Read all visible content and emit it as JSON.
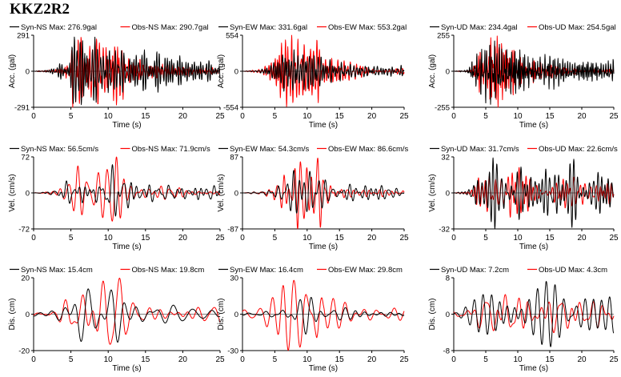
{
  "page": {
    "title": "KKZ2R2"
  },
  "colors": {
    "syn": "#000000",
    "obs": "#ff0000"
  },
  "chart_data": [
    {
      "type": "line",
      "id": "acc-ns",
      "xlabel": "Time (s)",
      "ylabel": "Acc. (gal)",
      "xlim": [
        0,
        25
      ],
      "ylim": [
        -291,
        291
      ],
      "xticks": [
        0,
        5,
        10,
        15,
        20,
        25
      ],
      "yticks": [
        -291,
        0,
        291
      ],
      "seed": 11,
      "series": [
        {
          "name": "Syn-NS  Max: 276.9gal",
          "peak": 276.9,
          "env": [
            [
              0,
              0
            ],
            [
              2,
              0.03
            ],
            [
              4.5,
              0.2
            ],
            [
              5,
              0.5
            ],
            [
              6,
              0.85
            ],
            [
              7.5,
              0.8
            ],
            [
              9,
              0.85
            ],
            [
              10.5,
              1.0
            ],
            [
              12,
              0.55
            ],
            [
              14,
              0.4
            ],
            [
              16,
              0.35
            ],
            [
              19,
              0.3
            ],
            [
              21,
              0.25
            ],
            [
              25,
              0.2
            ]
          ],
          "period": 0.45
        },
        {
          "name": "Obs-NS  Max: 290.7gal",
          "peak": 290.7,
          "env": [
            [
              0,
              0
            ],
            [
              3,
              0.03
            ],
            [
              4.8,
              0.2
            ],
            [
              5.3,
              0.75
            ],
            [
              6.2,
              1.0
            ],
            [
              8,
              0.8
            ],
            [
              10,
              0.75
            ],
            [
              11,
              0.85
            ],
            [
              12.5,
              0.3
            ],
            [
              15,
              0.15
            ],
            [
              20,
              0.08
            ],
            [
              25,
              0.05
            ]
          ],
          "period": 0.38
        }
      ]
    },
    {
      "type": "line",
      "id": "acc-ew",
      "xlabel": "Time (s)",
      "ylabel": "Acc. (gal)",
      "xlim": [
        0,
        25
      ],
      "ylim": [
        -554,
        554
      ],
      "xticks": [
        0,
        5,
        10,
        15,
        20,
        25
      ],
      "yticks": [
        -554,
        0,
        554
      ],
      "seed": 23,
      "series": [
        {
          "name": "Syn-EW  Max: 331.6gal",
          "peak": 331.6,
          "env": [
            [
              0,
              0
            ],
            [
              2.5,
              0.03
            ],
            [
              4.5,
              0.2
            ],
            [
              5.5,
              0.45
            ],
            [
              7,
              0.6
            ],
            [
              9,
              0.5
            ],
            [
              11,
              0.6
            ],
            [
              13,
              0.35
            ],
            [
              16,
              0.25
            ],
            [
              20,
              0.2
            ],
            [
              25,
              0.15
            ]
          ],
          "period": 0.45
        },
        {
          "name": "Obs-EW  Max: 553.2gal",
          "peak": 553.2,
          "env": [
            [
              0,
              0
            ],
            [
              3,
              0.03
            ],
            [
              5,
              0.2
            ],
            [
              6,
              0.5
            ],
            [
              7,
              0.55
            ],
            [
              9,
              0.45
            ],
            [
              10.5,
              0.5
            ],
            [
              11.5,
              1.0
            ],
            [
              12.5,
              0.3
            ],
            [
              15,
              0.12
            ],
            [
              20,
              0.06
            ],
            [
              25,
              0.04
            ]
          ],
          "period": 0.4
        }
      ]
    },
    {
      "type": "line",
      "id": "acc-ud",
      "xlabel": "Time (s)",
      "ylabel": "Acc. (gal)",
      "xlim": [
        0,
        25
      ],
      "ylim": [
        -255,
        255
      ],
      "xticks": [
        0,
        5,
        10,
        15,
        20,
        25
      ],
      "yticks": [
        -255,
        0,
        255
      ],
      "seed": 37,
      "series": [
        {
          "name": "Syn-UD  Max: 234.4gal",
          "peak": 234.4,
          "env": [
            [
              0,
              0
            ],
            [
              2,
              0.05
            ],
            [
              3,
              0.4
            ],
            [
              5,
              0.7
            ],
            [
              7,
              0.95
            ],
            [
              9,
              0.8
            ],
            [
              11,
              0.65
            ],
            [
              13,
              0.5
            ],
            [
              16,
              0.4
            ],
            [
              20,
              0.35
            ],
            [
              25,
              0.35
            ]
          ],
          "period": 0.32
        },
        {
          "name": "Obs-UD  Max: 254.5gal",
          "peak": 254.5,
          "env": [
            [
              0,
              0
            ],
            [
              2.5,
              0.05
            ],
            [
              3.5,
              0.5
            ],
            [
              5,
              0.8
            ],
            [
              7,
              1.0
            ],
            [
              9,
              0.75
            ],
            [
              11,
              0.55
            ],
            [
              13,
              0.3
            ],
            [
              16,
              0.15
            ],
            [
              20,
              0.08
            ],
            [
              25,
              0.06
            ]
          ],
          "period": 0.26
        }
      ]
    },
    {
      "type": "line",
      "id": "vel-ns",
      "xlabel": "Time (s)",
      "ylabel": "Vel. (cm/s)",
      "xlim": [
        0,
        25
      ],
      "ylim": [
        -72,
        72
      ],
      "xticks": [
        0,
        5,
        10,
        15,
        20,
        25
      ],
      "yticks": [
        -72,
        0,
        72
      ],
      "seed": 41,
      "series": [
        {
          "name": "Syn-NS  Max: 56.5cm/s",
          "peak": 56.5,
          "env": [
            [
              0,
              0
            ],
            [
              3,
              0.08
            ],
            [
              5,
              0.5
            ],
            [
              7,
              0.55
            ],
            [
              9,
              0.5
            ],
            [
              11,
              1.0
            ],
            [
              13,
              0.45
            ],
            [
              16,
              0.35
            ],
            [
              20,
              0.3
            ],
            [
              25,
              0.25
            ]
          ],
          "period": 1.1
        },
        {
          "name": "Obs-NS  Max: 71.9cm/s",
          "peak": 71.9,
          "env": [
            [
              0,
              0
            ],
            [
              3,
              0.05
            ],
            [
              5,
              0.4
            ],
            [
              6,
              0.65
            ],
            [
              8,
              0.5
            ],
            [
              10,
              0.6
            ],
            [
              11,
              1.0
            ],
            [
              12.5,
              0.3
            ],
            [
              15,
              0.15
            ],
            [
              20,
              0.08
            ],
            [
              25,
              0.05
            ]
          ],
          "period": 1.0
        }
      ]
    },
    {
      "type": "line",
      "id": "vel-ew",
      "xlabel": "Time (s)",
      "ylabel": "Vel. (cm/s)",
      "xlim": [
        0,
        25
      ],
      "ylim": [
        -87,
        87
      ],
      "xticks": [
        0,
        5,
        10,
        15,
        20,
        25
      ],
      "yticks": [
        -87,
        0,
        87
      ],
      "seed": 53,
      "series": [
        {
          "name": "Syn-EW  Max: 54.3cm/s",
          "peak": 54.3,
          "env": [
            [
              0,
              0
            ],
            [
              3,
              0.05
            ],
            [
              5,
              0.3
            ],
            [
              7,
              0.55
            ],
            [
              9,
              0.7
            ],
            [
              11,
              1.0
            ],
            [
              12.5,
              0.5
            ],
            [
              15,
              0.3
            ],
            [
              20,
              0.25
            ],
            [
              25,
              0.25
            ]
          ],
          "period": 1.1
        },
        {
          "name": "Obs-EW  Max: 86.6cm/s",
          "peak": 86.6,
          "env": [
            [
              0,
              0
            ],
            [
              3,
              0.05
            ],
            [
              5,
              0.2
            ],
            [
              7,
              0.45
            ],
            [
              9,
              0.5
            ],
            [
              10.5,
              0.55
            ],
            [
              11.5,
              1.0
            ],
            [
              12.5,
              0.35
            ],
            [
              15,
              0.12
            ],
            [
              20,
              0.06
            ],
            [
              25,
              0.05
            ]
          ],
          "period": 1.0
        }
      ]
    },
    {
      "type": "line",
      "id": "vel-ud",
      "xlabel": "Time (s)",
      "ylabel": "Vel. (cm/s)",
      "xlim": [
        0,
        25
      ],
      "ylim": [
        -32,
        32
      ],
      "xticks": [
        0,
        5,
        10,
        15,
        20,
        25
      ],
      "yticks": [
        -32,
        0,
        32
      ],
      "seed": 67,
      "series": [
        {
          "name": "Syn-UD  Max: 31.7cm/s",
          "peak": 31.7,
          "env": [
            [
              0,
              0
            ],
            [
              2,
              0.05
            ],
            [
              3,
              0.3
            ],
            [
              5,
              0.5
            ],
            [
              8,
              1.0
            ],
            [
              10,
              0.7
            ],
            [
              13,
              0.6
            ],
            [
              16,
              0.65
            ],
            [
              20,
              0.6
            ],
            [
              25,
              0.5
            ]
          ],
          "period": 0.8
        },
        {
          "name": "Obs-UD  Max: 22.6cm/s",
          "peak": 22.6,
          "env": [
            [
              0,
              0
            ],
            [
              2.5,
              0.05
            ],
            [
              3.5,
              0.4
            ],
            [
              5,
              0.6
            ],
            [
              7,
              0.8
            ],
            [
              9,
              0.9
            ],
            [
              11,
              0.7
            ],
            [
              13,
              0.45
            ],
            [
              16,
              0.4
            ],
            [
              20,
              0.35
            ],
            [
              25,
              0.3
            ]
          ],
          "period": 0.7
        }
      ]
    },
    {
      "type": "line",
      "id": "dis-ns",
      "xlabel": "Time (s)",
      "ylabel": "Dis. (cm)",
      "xlim": [
        0,
        25
      ],
      "ylim": [
        -20,
        20
      ],
      "xticks": [
        0,
        5,
        10,
        15,
        20,
        25
      ],
      "yticks": [
        -20,
        0,
        20
      ],
      "seed": 71,
      "series": [
        {
          "name": "Syn-NS  Max: 15.4cm",
          "peak": 15.4,
          "env": [
            [
              0,
              0.05
            ],
            [
              3,
              0.1
            ],
            [
              5,
              0.4
            ],
            [
              6,
              0.65
            ],
            [
              8,
              0.45
            ],
            [
              10,
              0.75
            ],
            [
              11,
              1.0
            ],
            [
              12.5,
              0.5
            ],
            [
              15,
              0.35
            ],
            [
              20,
              0.3
            ],
            [
              25,
              0.25
            ]
          ],
          "period": 2.0
        },
        {
          "name": "Obs-NS  Max: 19.8cm",
          "peak": 19.8,
          "env": [
            [
              0,
              0.05
            ],
            [
              3,
              0.1
            ],
            [
              5,
              0.6
            ],
            [
              6,
              0.8
            ],
            [
              8,
              0.7
            ],
            [
              10,
              0.9
            ],
            [
              11,
              1.0
            ],
            [
              12.5,
              0.3
            ],
            [
              15,
              0.25
            ],
            [
              20,
              0.2
            ],
            [
              25,
              0.15
            ]
          ],
          "period": 2.2
        }
      ]
    },
    {
      "type": "line",
      "id": "dis-ew",
      "xlabel": "Time (s)",
      "ylabel": "Dis. (cm)",
      "xlim": [
        0,
        25
      ],
      "ylim": [
        -30,
        30
      ],
      "xticks": [
        0,
        5,
        10,
        15,
        20,
        25
      ],
      "yticks": [
        -30,
        0,
        30
      ],
      "seed": 83,
      "series": [
        {
          "name": "Syn-EW  Max: 16.4cm",
          "peak": 16.4,
          "env": [
            [
              0,
              0.05
            ],
            [
              3,
              0.1
            ],
            [
              5,
              0.3
            ],
            [
              7,
              0.55
            ],
            [
              9,
              0.75
            ],
            [
              11,
              1.0
            ],
            [
              12.5,
              0.5
            ],
            [
              15,
              0.35
            ],
            [
              20,
              0.3
            ],
            [
              25,
              0.25
            ]
          ],
          "period": 2.1
        },
        {
          "name": "Obs-EW  Max: 29.8cm",
          "peak": 29.8,
          "env": [
            [
              0,
              0.05
            ],
            [
              3,
              0.08
            ],
            [
              5,
              0.25
            ],
            [
              6.5,
              0.6
            ],
            [
              8,
              0.45
            ],
            [
              9.5,
              0.6
            ],
            [
              10.5,
              0.7
            ],
            [
              11.5,
              1.0
            ],
            [
              12.5,
              0.3
            ],
            [
              15,
              0.15
            ],
            [
              20,
              0.1
            ],
            [
              25,
              0.08
            ]
          ],
          "period": 2.3
        }
      ]
    },
    {
      "type": "line",
      "id": "dis-ud",
      "xlabel": "Time (s)",
      "ylabel": "Dis. (cm)",
      "xlim": [
        0,
        25
      ],
      "ylim": [
        -8,
        8
      ],
      "xticks": [
        0,
        5,
        10,
        15,
        20,
        25
      ],
      "yticks": [
        -8,
        0,
        8
      ],
      "seed": 97,
      "series": [
        {
          "name": "Syn-UD  Max: 7.2cm",
          "peak": 7.2,
          "env": [
            [
              0,
              0.1
            ],
            [
              3,
              0.3
            ],
            [
              5,
              0.5
            ],
            [
              7,
              0.85
            ],
            [
              9,
              1.0
            ],
            [
              11,
              0.8
            ],
            [
              13,
              0.7
            ],
            [
              16,
              0.75
            ],
            [
              20,
              0.7
            ],
            [
              25,
              0.6
            ]
          ],
          "period": 1.8
        },
        {
          "name": "Obs-UD  Max: 4.3cm",
          "peak": 4.3,
          "env": [
            [
              0,
              0.1
            ],
            [
              3,
              0.3
            ],
            [
              5,
              0.6
            ],
            [
              7,
              0.8
            ],
            [
              9,
              1.0
            ],
            [
              11,
              0.85
            ],
            [
              13,
              0.7
            ],
            [
              16,
              0.75
            ],
            [
              20,
              0.7
            ],
            [
              25,
              0.6
            ]
          ],
          "period": 2.0
        }
      ]
    }
  ]
}
